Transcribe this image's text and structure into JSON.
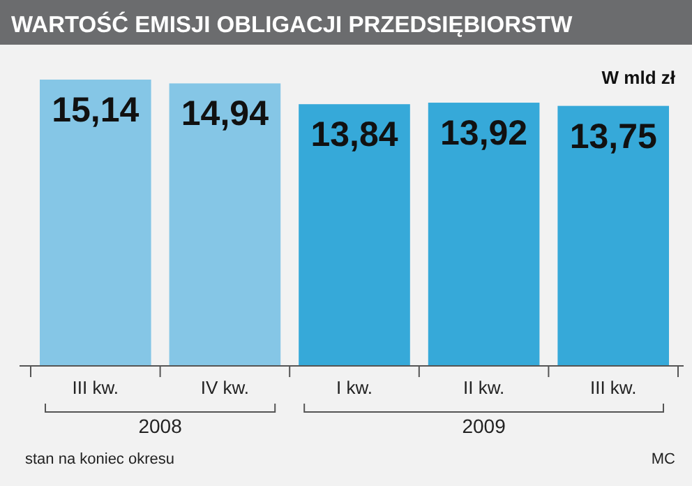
{
  "chart_data": {
    "type": "bar",
    "title": "WARTOŚĆ EMISJI OBLIGACJI PRZEDSIĘBIORSTW",
    "ylabel": "W mld zł",
    "categories": [
      "III kw.",
      "IV kw.",
      "I kw.",
      "II kw.",
      "III kw."
    ],
    "values": [
      15.14,
      14.94,
      13.84,
      13.92,
      13.75
    ],
    "colors": [
      "#85c6e6",
      "#85c6e6",
      "#36a9d9",
      "#36a9d9",
      "#36a9d9"
    ],
    "value_labels": [
      "15,14",
      "14,94",
      "13,84",
      "13,92",
      "13,75"
    ],
    "annotations": [
      "2008",
      "2009",
      "stan na koniec okresu",
      "MC"
    ]
  }
}
